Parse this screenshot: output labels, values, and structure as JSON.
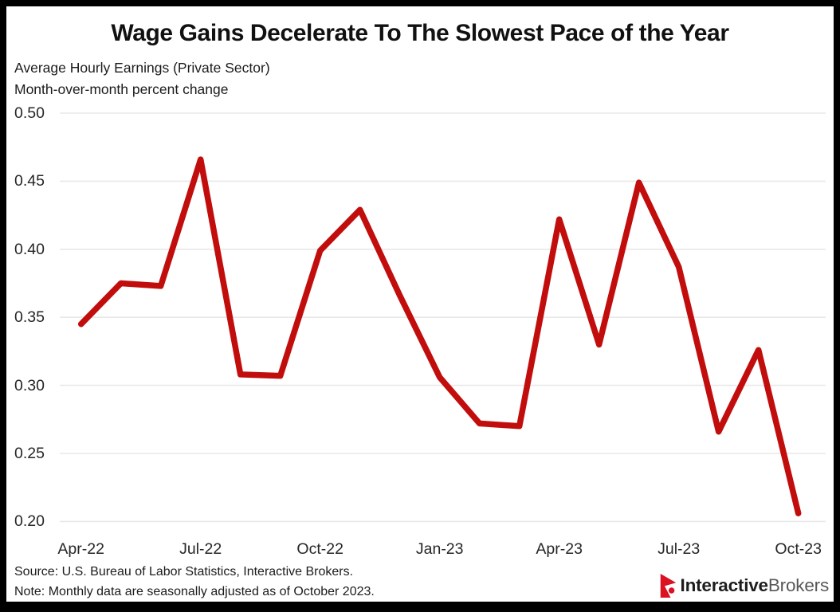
{
  "header": {
    "title": "Wage Gains Decelerate To The Slowest Pace of the Year",
    "subtitle_line1": "Average Hourly Earnings (Private Sector)",
    "subtitle_line2": "Month-over-month percent change"
  },
  "footer": {
    "source": "Source: U.S. Bureau of Labor Statistics, Interactive Brokers.",
    "note": "Note: Monthly data are seasonally adjusted as of October 2023.",
    "logo": {
      "icon": "interactive-brokers-spinnaker-icon",
      "icon_color": "#DB1222",
      "text_bold": "Interactive",
      "text_light": "Brokers"
    }
  },
  "chart_data": {
    "type": "line",
    "title": "Wage Gains Decelerate To The Slowest Pace of the Year",
    "subtitle": "Average Hourly Earnings (Private Sector) — Month-over-month percent change",
    "x": [
      "Apr-22",
      "May-22",
      "Jun-22",
      "Jul-22",
      "Aug-22",
      "Sep-22",
      "Oct-22",
      "Nov-22",
      "Dec-22",
      "Jan-23",
      "Feb-23",
      "Mar-23",
      "Apr-23",
      "May-23",
      "Jun-23",
      "Jul-23",
      "Aug-23",
      "Sep-23",
      "Oct-23"
    ],
    "series": [
      {
        "name": "Average Hourly Earnings MoM % change",
        "color": "#C20D0D",
        "values": [
          0.345,
          0.375,
          0.373,
          0.466,
          0.308,
          0.307,
          0.399,
          0.429,
          0.366,
          0.306,
          0.272,
          0.27,
          0.422,
          0.33,
          0.449,
          0.387,
          0.266,
          0.326,
          0.206
        ]
      }
    ],
    "ylim": [
      0.2,
      0.5
    ],
    "yticks": [
      "0.50",
      "0.45",
      "0.40",
      "0.35",
      "0.30",
      "0.25",
      "0.20"
    ],
    "xticks": [
      {
        "index": 0,
        "label": "Apr-22"
      },
      {
        "index": 3,
        "label": "Jul-22"
      },
      {
        "index": 6,
        "label": "Oct-22"
      },
      {
        "index": 9,
        "label": "Jan-23"
      },
      {
        "index": 12,
        "label": "Apr-23"
      },
      {
        "index": 15,
        "label": "Jul-23"
      },
      {
        "index": 18,
        "label": "Oct-23"
      }
    ],
    "grid": true,
    "gridline_color": "#E8E8E8",
    "legend": "none",
    "line_width": 7.5
  }
}
